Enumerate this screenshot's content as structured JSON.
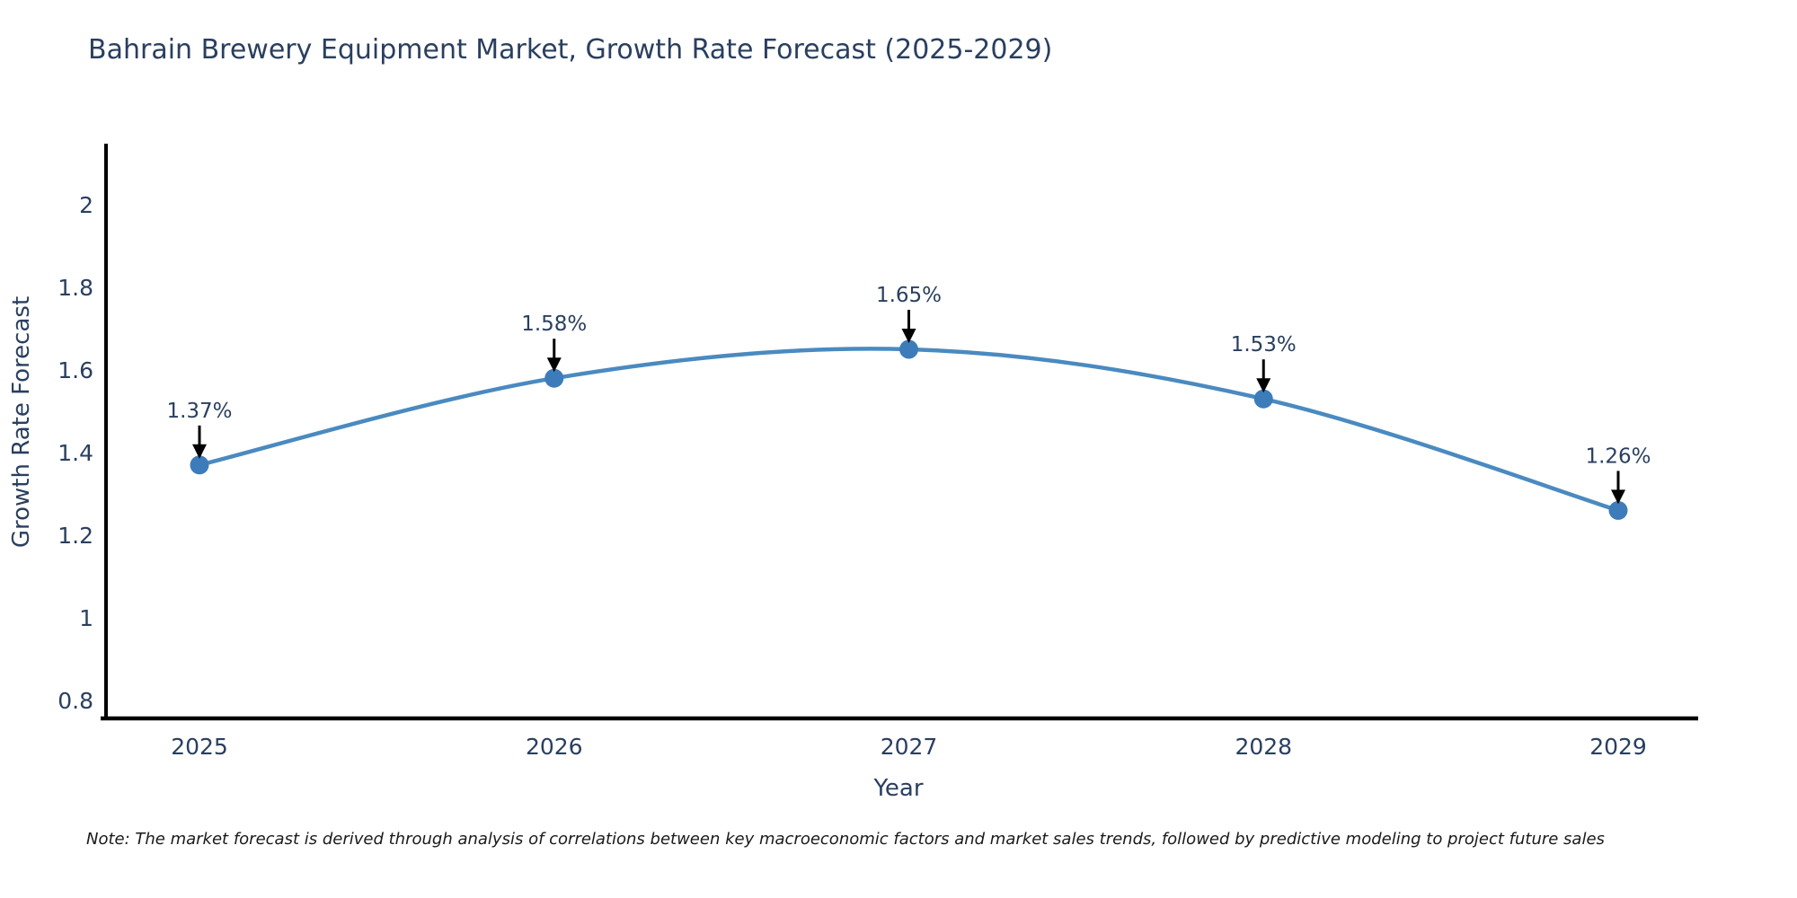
{
  "title": "Bahrain Brewery Equipment Market, Growth Rate Forecast (2025-2029)",
  "note": "Note: The market forecast is derived through analysis of correlations between key macroeconomic factors and market sales trends, followed by predictive modeling to project future sales",
  "chart_data": {
    "type": "line",
    "title": "Bahrain Brewery Equipment Market, Growth Rate Forecast (2025-2029)",
    "xlabel": "Year",
    "ylabel": "Growth Rate Forecast",
    "x": [
      2025,
      2026,
      2027,
      2028,
      2029
    ],
    "categories": [
      "2025",
      "2026",
      "2027",
      "2028",
      "2029"
    ],
    "values": [
      1.37,
      1.58,
      1.65,
      1.53,
      1.26
    ],
    "point_labels": [
      "1.37%",
      "1.58%",
      "1.65%",
      "1.53%",
      "1.26%"
    ],
    "ytick_labels": [
      "2",
      "1.8",
      "1.6",
      "1.4",
      "1.2",
      "1",
      "0.8"
    ],
    "yticks": [
      2,
      1.8,
      1.6,
      1.4,
      1.2,
      1,
      0.8
    ],
    "ylim": [
      0.76,
      2.15
    ],
    "grid": false,
    "legend": false,
    "annotations_arrows": true,
    "colors": {
      "line": "#4a8ac0",
      "marker": "#3d7cba",
      "axis": "#000000",
      "text": "#2a3f5f",
      "arrow": "#000000",
      "note_text": "#1a1a1a"
    }
  }
}
